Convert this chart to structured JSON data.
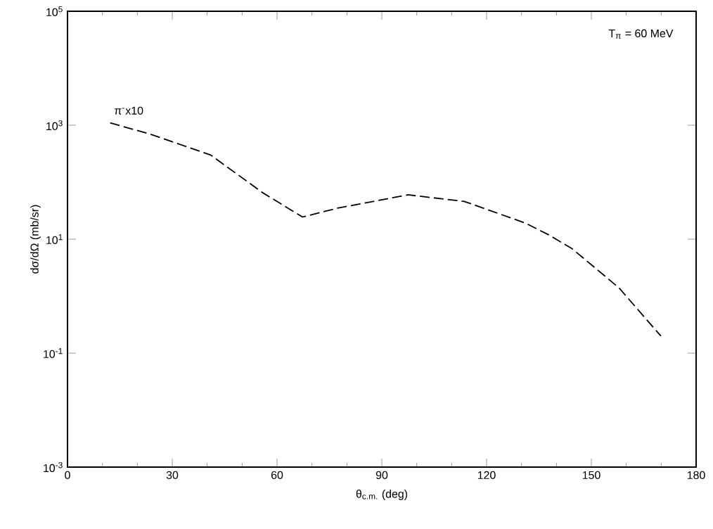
{
  "chart_data": {
    "type": "line",
    "xlabel": "θ$_{c.m.}$ (deg)",
    "ylabel": "dσ/dΩ (mb/sr)",
    "annotations": [
      "T$_{π}$ = 60 MeV",
      "π$^{-}$x10"
    ],
    "x": [
      12.2,
      23.6,
      41,
      55.8,
      67.3,
      77.3,
      97.5,
      113.6,
      131,
      137.7,
      144.5,
      157.9,
      169.9
    ],
    "series": [
      {
        "color": "#000000",
        "values": [
          1100,
          700,
          300,
          66,
          24.5,
          35,
          60,
          46,
          19.3,
          12,
          6.8,
          1.4,
          0.2
        ]
      }
    ],
    "xlim": [
      0,
      180
    ],
    "xticks": [
      0,
      30,
      60,
      90,
      120,
      150,
      180
    ],
    "ylim": [
      0.001,
      100000
    ],
    "yticks": [
      {
        "value": 0.001,
        "label": "10$^{-3}$"
      },
      {
        "value": 0.1,
        "label": "10$^{-1}$"
      },
      {
        "value": 10,
        "label": "10$^{1}$"
      },
      {
        "value": 1000,
        "label": "10$^{3}$"
      },
      {
        "value": 100000,
        "label": "10$^{5}$"
      }
    ],
    "log": "y",
    "line_style": "dashed",
    "marker": "none",
    "grid": false,
    "legend": false
  }
}
